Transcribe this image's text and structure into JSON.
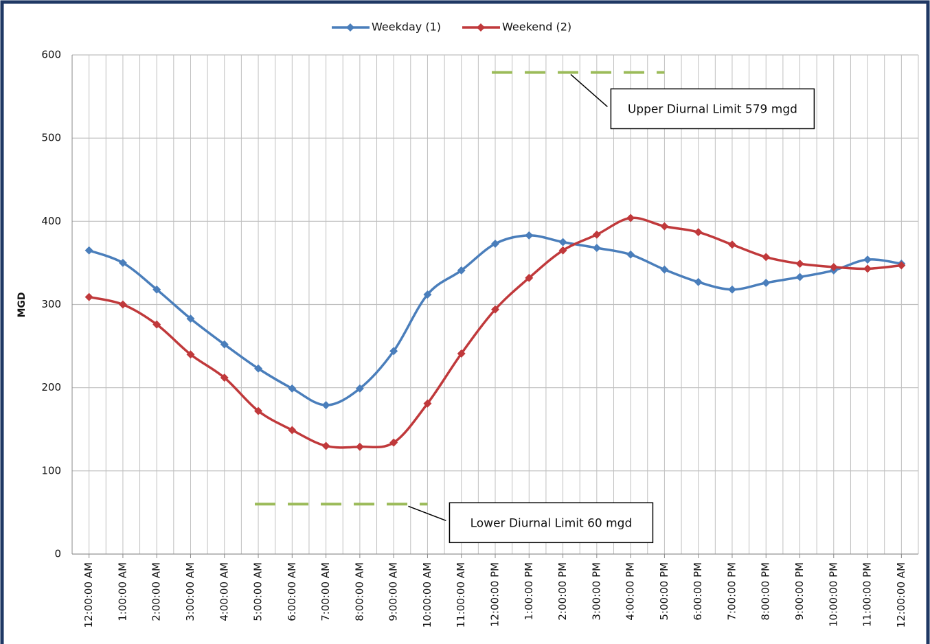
{
  "chart_data": {
    "type": "line",
    "y_label": "MGD",
    "categories": [
      "12:00:00 AM",
      "1:00:00 AM",
      "2:00:00 AM",
      "3:00:00 AM",
      "4:00:00 AM",
      "5:00:00 AM",
      "6:00:00 AM",
      "7:00:00 AM",
      "8:00:00 AM",
      "9:00:00 AM",
      "10:00:00 AM",
      "11:00:00 AM",
      "12:00:00 PM",
      "1:00:00 PM",
      "2:00:00 PM",
      "3:00:00 PM",
      "4:00:00 PM",
      "5:00:00 PM",
      "6:00:00 PM",
      "7:00:00 PM",
      "8:00:00 PM",
      "9:00:00 PM",
      "10:00:00 PM",
      "11:00:00 PM",
      "12:00:00 AM"
    ],
    "series": [
      {
        "name": "Weekday (1)",
        "color": "#4a7ebb",
        "values": [
          365,
          350,
          318,
          283,
          252,
          223,
          199,
          179,
          199,
          244,
          312,
          341,
          373,
          383,
          375,
          368,
          360,
          342,
          327,
          318,
          326,
          333,
          341,
          354,
          349
        ]
      },
      {
        "name": "Weekend (2)",
        "color": "#c0393b",
        "values": [
          309,
          300,
          276,
          240,
          212,
          172,
          149,
          130,
          129,
          134,
          181,
          241,
          294,
          332,
          365,
          384,
          404,
          394,
          387,
          372,
          357,
          349,
          345,
          343,
          347
        ]
      }
    ],
    "limits": [
      {
        "text": "Upper Diurnal Limit 579 mgd",
        "value": 579,
        "from": 12,
        "to": 17,
        "color": "#9bbb59"
      },
      {
        "text": "Lower Diurnal Limit 60 mgd",
        "value": 60,
        "from": 5,
        "to": 10,
        "color": "#9bbb59"
      }
    ],
    "ylim": [
      0,
      600
    ],
    "yticks": [
      0,
      100,
      200,
      300,
      400,
      500,
      600
    ],
    "grid": true,
    "legend": "top"
  }
}
